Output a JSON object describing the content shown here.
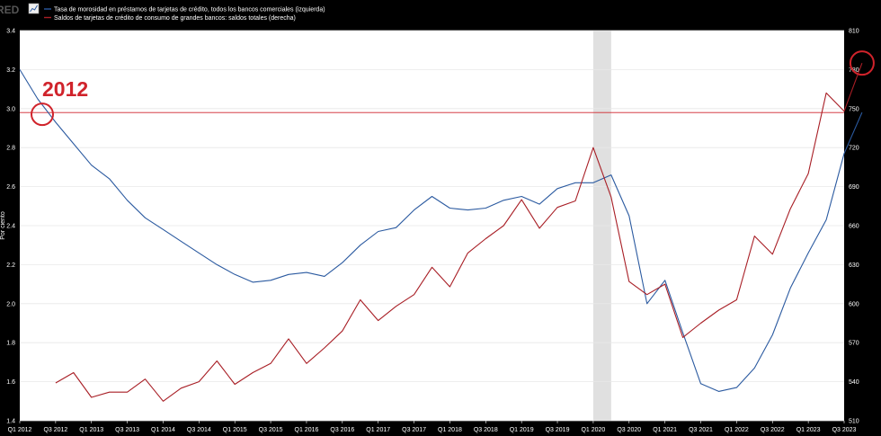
{
  "logo": {
    "text": "RED",
    "icon": "chart-icon"
  },
  "legend": [
    {
      "label": "Tasa de morosidad en préstamos de tarjetas de crédito, todos los bancos comerciales (izquierda)",
      "color": "#2b5aa0"
    },
    {
      "label": "Saldos de tarjetas de crédito de consumo de grandes bancos: saldos totales (derecha)",
      "color": "#a81e25"
    }
  ],
  "colors": {
    "background": "#000000",
    "plot": "#ffffff",
    "left_series": "#2b5aa0",
    "right_series": "#a81e25",
    "recession": "#e0e0e0",
    "annotation": "#d0232b"
  },
  "chart_data": {
    "type": "line",
    "title": "",
    "x_tick_labels": [
      "Q1 2012",
      "Q3 2012",
      "Q1 2013",
      "Q3 2013",
      "Q1 2014",
      "Q3 2014",
      "Q1 2015",
      "Q3 2015",
      "Q1 2016",
      "Q3 2016",
      "Q1 2017",
      "Q3 2017",
      "Q1 2018",
      "Q3 2018",
      "Q1 2019",
      "Q3 2019",
      "Q1 2020",
      "Q3 2020",
      "Q1 2021",
      "Q3 2021",
      "Q1 2022",
      "Q3 2022",
      "Q1 2023",
      "Q3 2023"
    ],
    "x_range": [
      "Q1 2012",
      "Q3 2023"
    ],
    "y_left": {
      "range": [
        1.4,
        3.4
      ],
      "ticks": [
        "1.4",
        "1.6",
        "1.8",
        "2.0",
        "2.2",
        "2.4",
        "2.6",
        "2.8",
        "3.0",
        "3.2",
        "3.4"
      ]
    },
    "y_right": {
      "range": [
        510,
        810
      ],
      "ticks": [
        "510",
        "540",
        "570",
        "600",
        "630",
        "660",
        "690",
        "720",
        "750",
        "780",
        "810"
      ]
    },
    "y_left_label": "Por ciento",
    "grid": "horizontal",
    "recession_shading": {
      "start": "Q1 2020",
      "end": "Q2 2020"
    },
    "series": [
      {
        "axis": "left",
        "start": "Q1 2012",
        "values": [
          3.2,
          3.05,
          2.93,
          2.82,
          2.71,
          2.64,
          2.53,
          2.44,
          2.38,
          2.32,
          2.26,
          2.2,
          2.15,
          2.11,
          2.12,
          2.15,
          2.16,
          2.14,
          2.21,
          2.3,
          2.37,
          2.39,
          2.48,
          2.55,
          2.49,
          2.48,
          2.49,
          2.53,
          2.55,
          2.51,
          2.59,
          2.62,
          2.62,
          2.66,
          2.45,
          2.0,
          2.12,
          1.85,
          1.59,
          1.55,
          1.57,
          1.67,
          1.84,
          2.08,
          2.26,
          2.43,
          2.77,
          2.98
        ]
      },
      {
        "axis": "right",
        "start": "Q3 2012",
        "values": [
          539,
          547,
          528,
          532,
          532,
          542,
          525,
          535,
          540,
          556,
          538,
          547,
          554,
          573,
          554,
          566,
          579,
          603,
          587,
          598,
          607,
          628,
          613,
          639,
          650,
          660,
          680,
          658,
          674,
          679,
          720,
          682,
          617,
          607,
          615,
          574,
          585,
          595,
          603,
          652,
          638,
          673,
          700,
          762,
          748,
          785
        ]
      }
    ],
    "reference_line": {
      "axis": "left",
      "value": 2.98,
      "label": "2012"
    },
    "annotations": [
      {
        "text": "2012",
        "target": "start-of-reference-line"
      },
      {
        "text": "",
        "target": "latest-right-series-point"
      }
    ]
  }
}
